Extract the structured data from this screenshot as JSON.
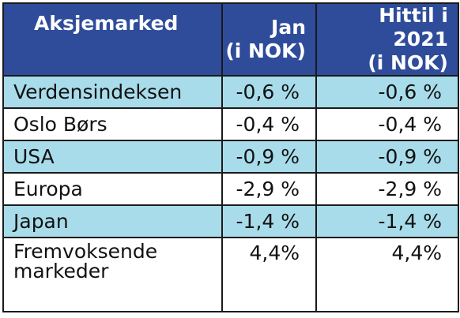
{
  "table": {
    "headers": {
      "name": "Aksjemarked",
      "jan_line1": "Jan",
      "jan_line2": "(i NOK)",
      "ytd_line1": "Hittil i 2021",
      "ytd_line2": "(i NOK)"
    },
    "colors": {
      "header_bg": "#2e4c9a",
      "header_text": "#ffffff",
      "row_shade": "#a8dcea",
      "row_plain": "#ffffff",
      "border": "#1a1a1a"
    },
    "rows": [
      {
        "name": "Verdensindeksen",
        "jan": "-0,6 %",
        "ytd": "-0,6 %",
        "shaded": true
      },
      {
        "name": "Oslo Børs",
        "jan": "-0,4 %",
        "ytd": "-0,4 %",
        "shaded": false
      },
      {
        "name": "USA",
        "jan": "-0,9 %",
        "ytd": "-0,9 %",
        "shaded": true
      },
      {
        "name": "Europa",
        "jan": "-2,9 %",
        "ytd": "-2,9 %",
        "shaded": false
      },
      {
        "name": "Japan",
        "jan": "-1,4 %",
        "ytd": "-1,4 %",
        "shaded": true
      },
      {
        "name_line1": "Fremvoksende",
        "name_line2": "markeder",
        "jan": "4,4%",
        "ytd": "4,4%",
        "shaded": false
      }
    ]
  }
}
